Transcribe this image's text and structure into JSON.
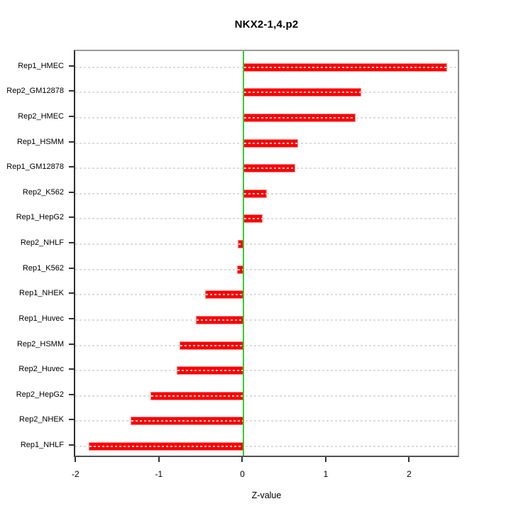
{
  "figure": {
    "title": "NKX2-1,4.p2",
    "xlabel": "Z-value"
  },
  "chart_data": {
    "type": "bar",
    "orientation": "horizontal",
    "title": "NKX2-1,4.p2",
    "xlabel": "Z-value",
    "ylabel": "",
    "categories": [
      "Rep1_HMEC",
      "Rep2_GM12878",
      "Rep2_HMEC",
      "Rep1_HSMM",
      "Rep1_GM12878",
      "Rep2_K562",
      "Rep1_HepG2",
      "Rep2_NHLF",
      "Rep1_K562",
      "Rep1_NHEK",
      "Rep1_Huvec",
      "Rep2_HSMM",
      "Rep2_Huvec",
      "Rep2_HepG2",
      "Rep2_NHEK",
      "Rep1_NHLF"
    ],
    "values": [
      2.44,
      1.41,
      1.34,
      0.65,
      0.62,
      0.28,
      0.23,
      -0.07,
      -0.08,
      -0.46,
      -0.57,
      -0.77,
      -0.8,
      -1.12,
      -1.36,
      -1.86
    ],
    "xlim": [
      -2.02,
      2.6
    ],
    "xticks": [
      -2,
      -1,
      0,
      1,
      2
    ],
    "grid": true,
    "zero_line": true,
    "legend": null,
    "colors": {
      "bar": "#fb0000",
      "bar_edge": "#ff8a8a",
      "zero_line": "#33cc33",
      "grid": "#dcdcdc",
      "box": "#808080",
      "text": "#000000"
    }
  }
}
